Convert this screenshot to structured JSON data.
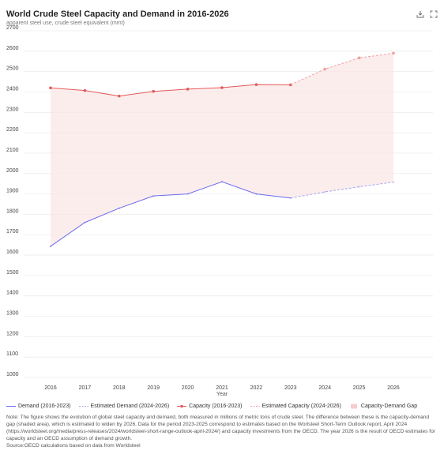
{
  "header": {
    "title": "World Crude Steel Capacity and Demand in 2016-2026",
    "subtitle": "apparent steel use, crude steel equivalent (mmt)"
  },
  "toolbar": {
    "download_icon": "download-icon",
    "fullscreen_icon": "fullscreen-icon"
  },
  "colors": {
    "demand": "#6b6bef",
    "capacity": "#e25a5a",
    "gap_fill": "#fbe6e6"
  },
  "chart_data": {
    "type": "line",
    "xlabel": "Year",
    "ylabel": "",
    "ylim": [
      1000,
      2700
    ],
    "y_ticks": [
      "1000",
      "1100",
      "1200",
      "1300",
      "1400",
      "1500",
      "1600",
      "1700",
      "1800",
      "1900",
      "2000",
      "2100",
      "2200",
      "2300",
      "2400",
      "2500",
      "2600",
      "2700"
    ],
    "categories": [
      "2016",
      "2017",
      "2018",
      "2019",
      "2020",
      "2021",
      "2022",
      "2023",
      "2024",
      "2025",
      "2026"
    ],
    "grid": true,
    "legend_position": "bottom",
    "series": [
      {
        "name": "Demand (2016-2023)",
        "style": "solid",
        "color": "#6b6bef",
        "x": [
          "2016",
          "2017",
          "2018",
          "2019",
          "2020",
          "2021",
          "2022",
          "2023"
        ],
        "values": [
          1643,
          1760,
          1830,
          1890,
          1900,
          1960,
          1900,
          1880
        ]
      },
      {
        "name": "Estimated Demand (2024-2026)",
        "style": "dashed",
        "color": "#a6a6f0",
        "x": [
          "2023",
          "2024",
          "2025",
          "2026"
        ],
        "values": [
          1880,
          1910,
          1935,
          1958
        ]
      },
      {
        "name": "Capacity (2016-2023)",
        "style": "solid",
        "color": "#e25a5a",
        "x": [
          "2016",
          "2017",
          "2018",
          "2019",
          "2020",
          "2021",
          "2022",
          "2023"
        ],
        "values": [
          2420,
          2407,
          2380,
          2403,
          2414,
          2421,
          2436,
          2435
        ]
      },
      {
        "name": "Estimated Capacity (2024-2026)",
        "style": "dashed",
        "color": "#f0a0a0",
        "x": [
          "2023",
          "2024",
          "2025",
          "2026"
        ],
        "values": [
          2435,
          2512,
          2567,
          2590
        ]
      }
    ],
    "area": {
      "name": "Capacity-Demand Gap",
      "color": "#fbe6e6"
    }
  },
  "legend": [
    {
      "label": "Demand (2016-2023)",
      "kind": "solid",
      "color": "#6b6bef"
    },
    {
      "label": "Estimated Demand (2024-2026)",
      "kind": "dashed",
      "color": "#a6a6f0"
    },
    {
      "label": "Capacity (2016-2023)",
      "kind": "solid-dot",
      "color": "#e25a5a"
    },
    {
      "label": "Estimated Capacity (2024-2026)",
      "kind": "dashed",
      "color": "#f0a0a0"
    },
    {
      "label": "Capacity-Demand Gap",
      "kind": "area",
      "color": "#f7cccc"
    }
  ],
  "note": {
    "text": "Note: The figure shows the evolution of global steel capacity and demand, both measured in millions of metric tons of crude steel. The difference between these is the capacity-demand gap (shaded area), which is estimated to widen by 2026. Data for the period 2023-2025 correspond to estimates based on the Worlsteel Short-Term Outlook report, April 2024 (https://worldsteel.org/media/press-releases/2024/worldsteel-short-range-outlook-april-2024/) and capacity investments from the OECD. The year 2026 is the result of OECD estimates for capacity and an OECD assumption of demand growth.",
    "source": "Source:OECD calculations based on data from Worldsteel"
  }
}
